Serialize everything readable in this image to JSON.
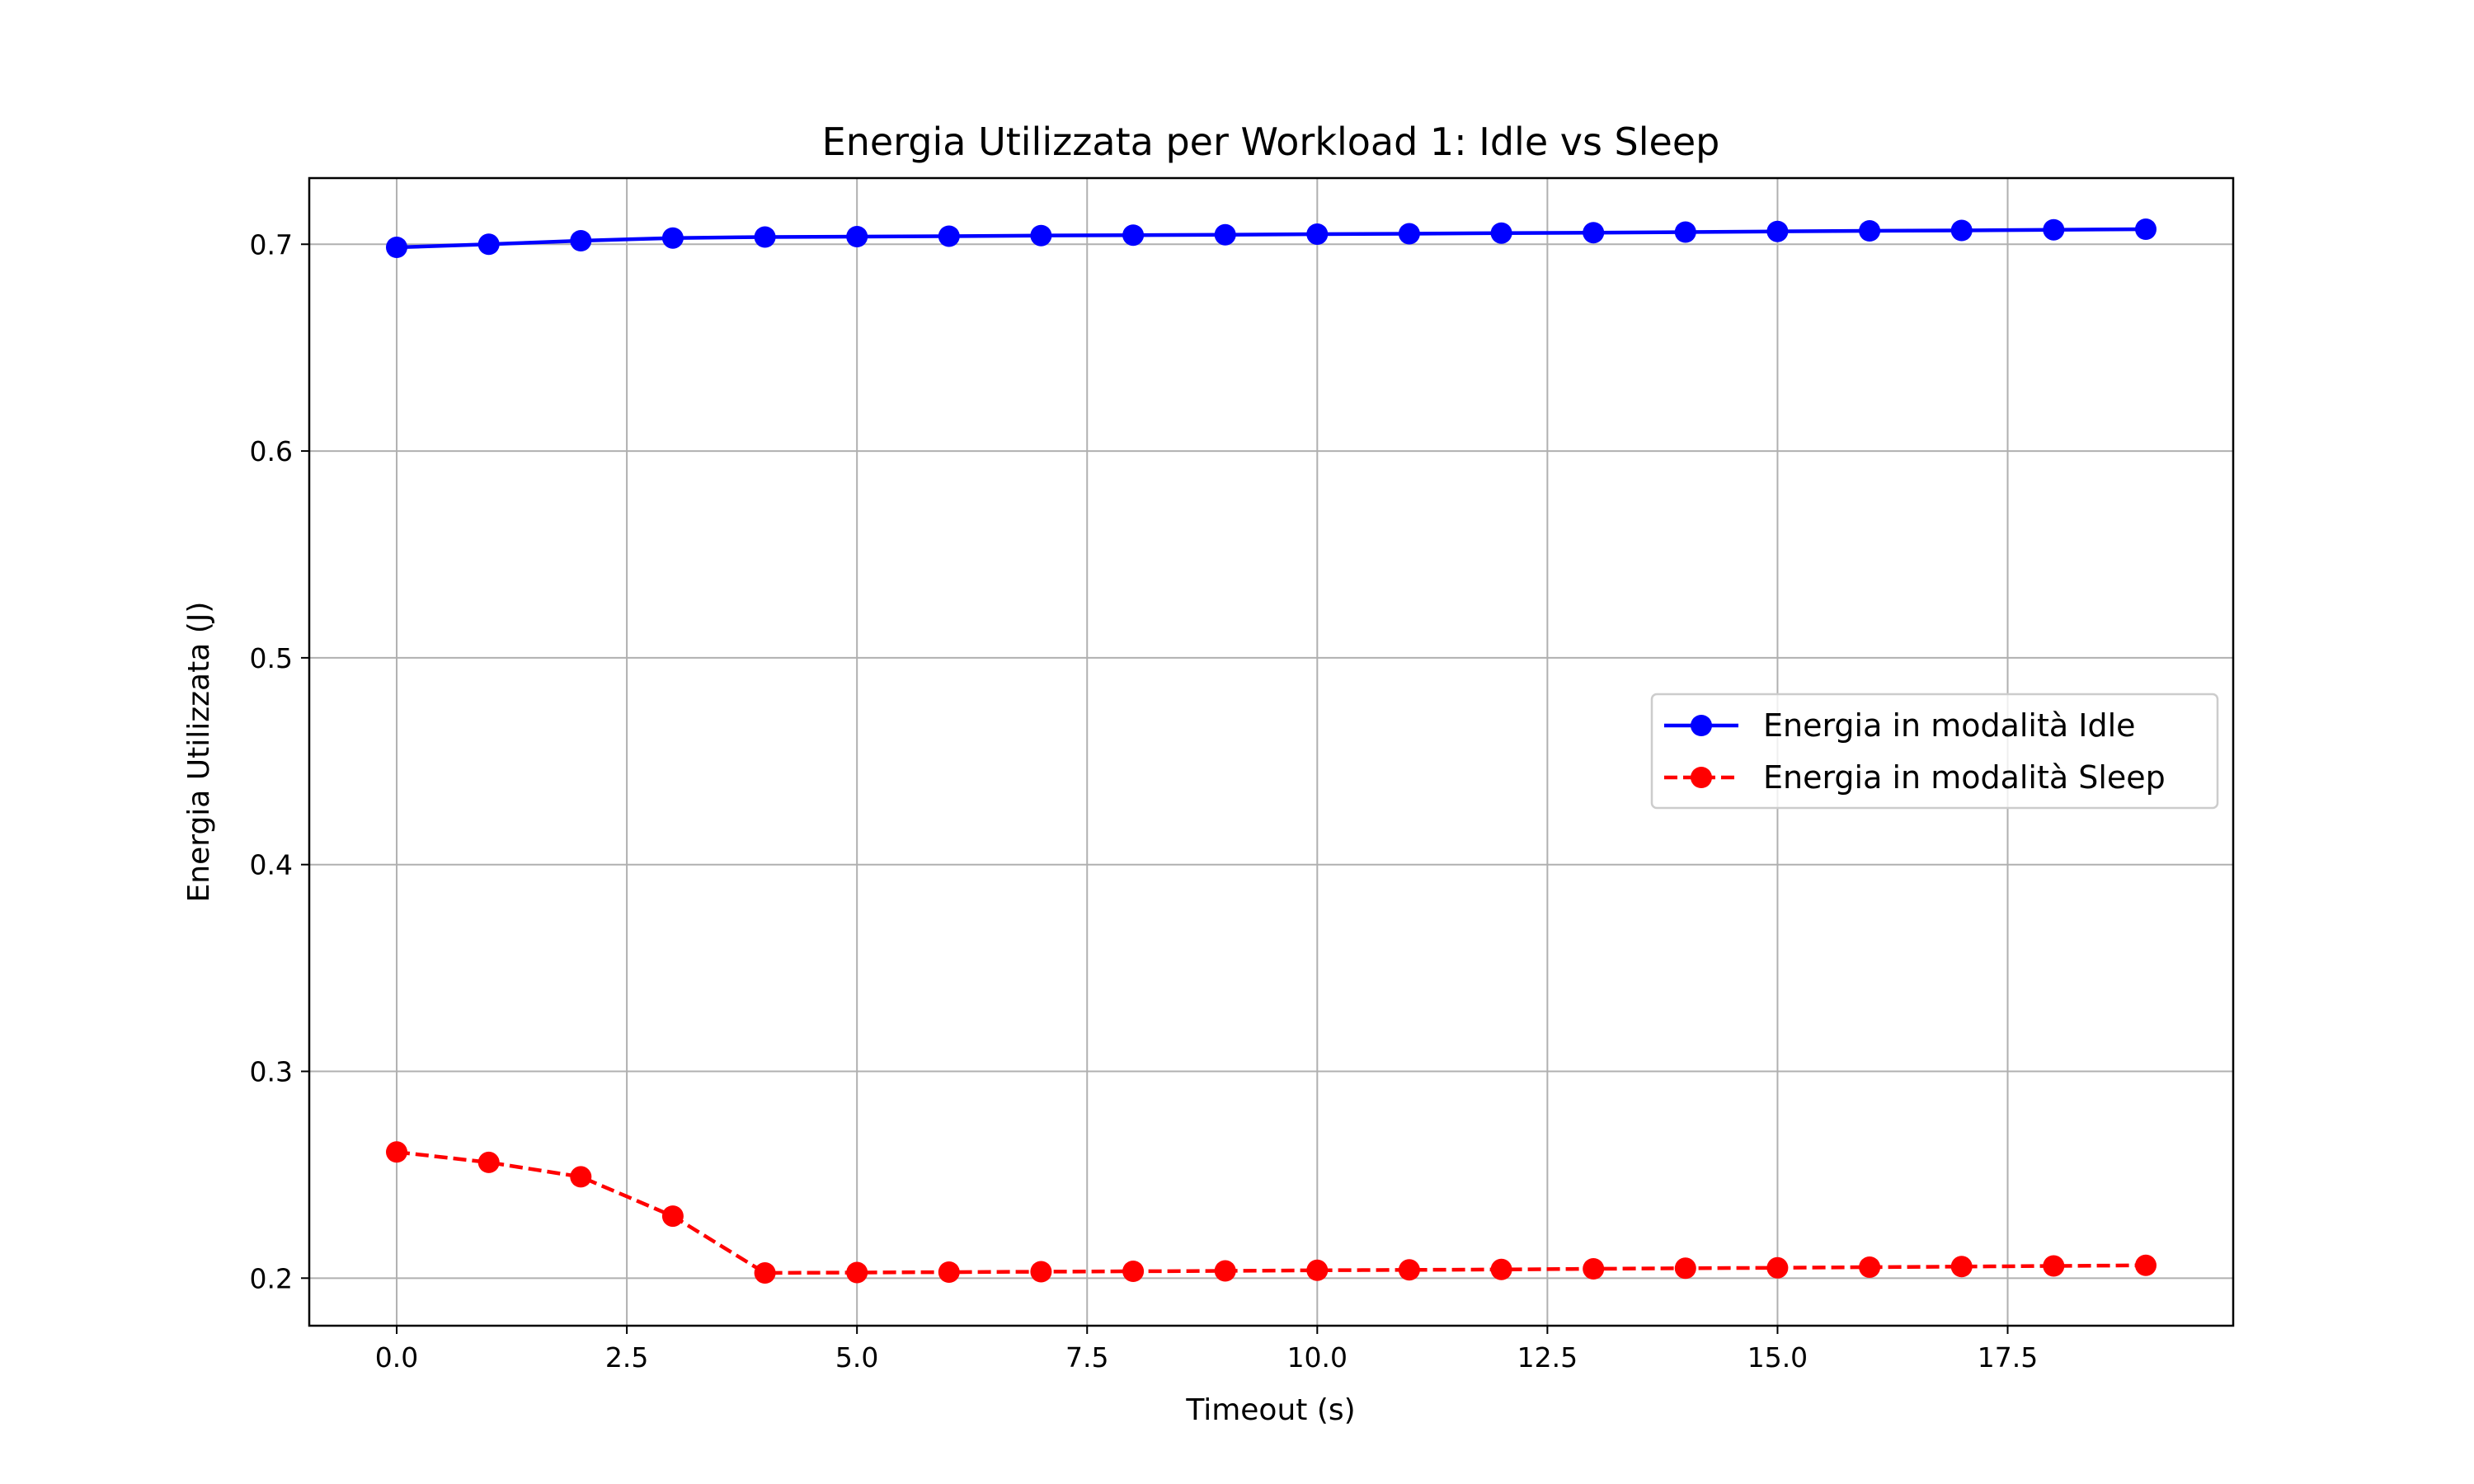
{
  "chart_data": {
    "type": "line",
    "title": "Energia Utilizzata per Workload 1: Idle vs Sleep",
    "xlabel": "Timeout (s)",
    "ylabel": "Energia Utilizzata (J)",
    "xlim": [
      -0.95,
      19.95
    ],
    "ylim": [
      0.177,
      0.732
    ],
    "xticks": [
      0.0,
      2.5,
      5.0,
      7.5,
      10.0,
      12.5,
      15.0,
      17.5
    ],
    "xtick_labels": [
      "0.0",
      "2.5",
      "5.0",
      "7.5",
      "10.0",
      "12.5",
      "15.0",
      "17.5"
    ],
    "yticks": [
      0.2,
      0.3,
      0.4,
      0.5,
      0.6,
      0.7
    ],
    "ytick_labels": [
      "0.2",
      "0.3",
      "0.4",
      "0.5",
      "0.6",
      "0.7"
    ],
    "grid": true,
    "legend_position": "center-right",
    "x": [
      0,
      1,
      2,
      3,
      4,
      5,
      6,
      7,
      8,
      9,
      10,
      11,
      12,
      13,
      14,
      15,
      16,
      17,
      18,
      19
    ],
    "series": [
      {
        "name": "Energia in modalità Idle",
        "color": "#0000ff",
        "linestyle": "solid",
        "values": [
          0.6985,
          0.7,
          0.7017,
          0.703,
          0.7035,
          0.7037,
          0.7039,
          0.7042,
          0.7044,
          0.7046,
          0.7049,
          0.7051,
          0.7054,
          0.7056,
          0.7059,
          0.7062,
          0.7065,
          0.7067,
          0.707,
          0.7073
        ]
      },
      {
        "name": "Energia in modalità Sleep",
        "color": "#ff0000",
        "linestyle": "dashed",
        "values": [
          0.261,
          0.256,
          0.249,
          0.23,
          0.2025,
          0.2027,
          0.2029,
          0.2031,
          0.2033,
          0.2035,
          0.2038,
          0.204,
          0.2042,
          0.2045,
          0.2048,
          0.205,
          0.2053,
          0.2056,
          0.2059,
          0.2062
        ]
      }
    ]
  }
}
